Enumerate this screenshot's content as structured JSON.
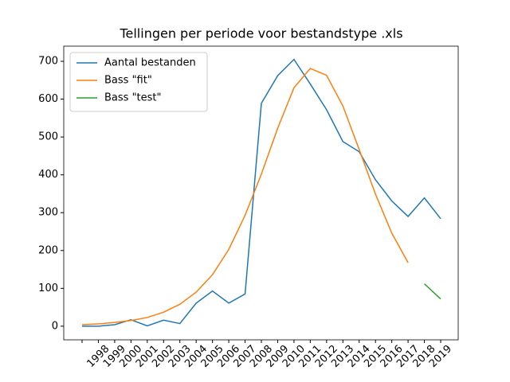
{
  "chart_data": {
    "type": "line",
    "title": "Tellingen per periode voor bestandstype .xls",
    "categories": [
      null,
      "1998",
      "1999",
      "2000",
      "2001",
      "2002",
      "2003",
      "2004",
      "2005",
      "2006",
      "2007",
      "2008",
      "2009",
      "2010",
      "2011",
      "2012",
      "2013",
      "2014",
      "2015",
      "2016",
      "2017",
      "2018",
      "2019"
    ],
    "series": [
      {
        "name": "Aantal bestanden",
        "color": "#1f77b4",
        "values": [
          0,
          0,
          4,
          17,
          1,
          16,
          7,
          61,
          93,
          61,
          85,
          589,
          662,
          705,
          640,
          572,
          488,
          461,
          387,
          331,
          290,
          339,
          284
        ]
      },
      {
        "name": "Bass \"fit\"",
        "color": "#ff7f0e",
        "values": [
          4,
          6,
          10,
          15,
          23,
          37,
          58,
          90,
          136,
          203,
          293,
          402,
          523,
          630,
          681,
          663,
          582,
          467,
          349,
          246,
          168,
          null,
          null
        ]
      },
      {
        "name": "Bass \"test\"",
        "color": "#2ca02c",
        "values": [
          null,
          null,
          null,
          null,
          null,
          null,
          null,
          null,
          null,
          null,
          null,
          null,
          null,
          null,
          null,
          null,
          null,
          null,
          null,
          null,
          null,
          112,
          72
        ]
      }
    ],
    "ylim": [
      -36,
      740
    ],
    "yticks": [
      0,
      100,
      200,
      300,
      400,
      500,
      600,
      700
    ],
    "legend": "upper left",
    "grid": false
  }
}
